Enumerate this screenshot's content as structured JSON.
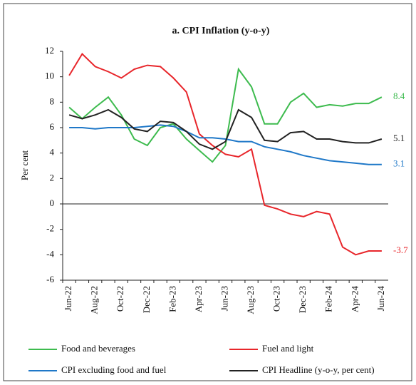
{
  "chart_data": {
    "type": "line",
    "title": "a. CPI  Inflation (y-o-y)",
    "y_label": "Per cent",
    "categories": [
      "Jun-22",
      null,
      "Aug-22",
      null,
      "Oct-22",
      null,
      "Dec-22",
      null,
      "Feb-23",
      null,
      "Apr-23",
      null,
      "Jun-23",
      null,
      "Aug-23",
      null,
      "Oct-23",
      null,
      "Dec-23",
      null,
      "Feb-24",
      null,
      "Apr-24",
      null,
      "Jun-24"
    ],
    "series": [
      {
        "name": "Food and beverages",
        "color": "#3dbb4e",
        "values": [
          7.6,
          6.7,
          7.6,
          8.4,
          7.0,
          5.1,
          4.6,
          6.0,
          6.3,
          5.1,
          4.2,
          3.3,
          4.6,
          10.6,
          9.2,
          6.3,
          6.3,
          8.0,
          8.7,
          7.6,
          7.8,
          7.7,
          7.9,
          7.9,
          8.4
        ]
      },
      {
        "name": "Fuel and light",
        "color": "#e8262b",
        "values": [
          10.1,
          11.8,
          10.8,
          10.4,
          9.9,
          10.6,
          10.9,
          10.8,
          9.9,
          8.8,
          5.5,
          4.6,
          3.9,
          3.7,
          4.3,
          -0.1,
          -0.4,
          -0.8,
          -1.0,
          -0.6,
          -0.8,
          -3.4,
          -4.0,
          -3.7,
          -3.7
        ]
      },
      {
        "name": "CPI excluding food and fuel",
        "color": "#1f78c8",
        "values": [
          6.0,
          6.0,
          5.9,
          6.0,
          6.0,
          6.0,
          6.1,
          6.2,
          6.1,
          5.7,
          5.2,
          5.2,
          5.1,
          4.9,
          4.9,
          4.5,
          4.3,
          4.1,
          3.8,
          3.6,
          3.4,
          3.3,
          3.2,
          3.1,
          3.1
        ]
      },
      {
        "name": "CPI Headline (y-o-y, per cent)",
        "color": "#222222",
        "values": [
          7.0,
          6.7,
          7.0,
          7.4,
          6.8,
          5.9,
          5.7,
          6.5,
          6.4,
          5.7,
          4.7,
          4.3,
          4.9,
          7.4,
          6.8,
          5.0,
          4.9,
          5.6,
          5.7,
          5.1,
          5.1,
          4.9,
          4.8,
          4.8,
          5.1
        ]
      }
    ],
    "ylim": [
      -6,
      12
    ],
    "yticks": [
      -6,
      -4,
      -2,
      0,
      2,
      4,
      6,
      8,
      10,
      12
    ],
    "grid": false
  }
}
